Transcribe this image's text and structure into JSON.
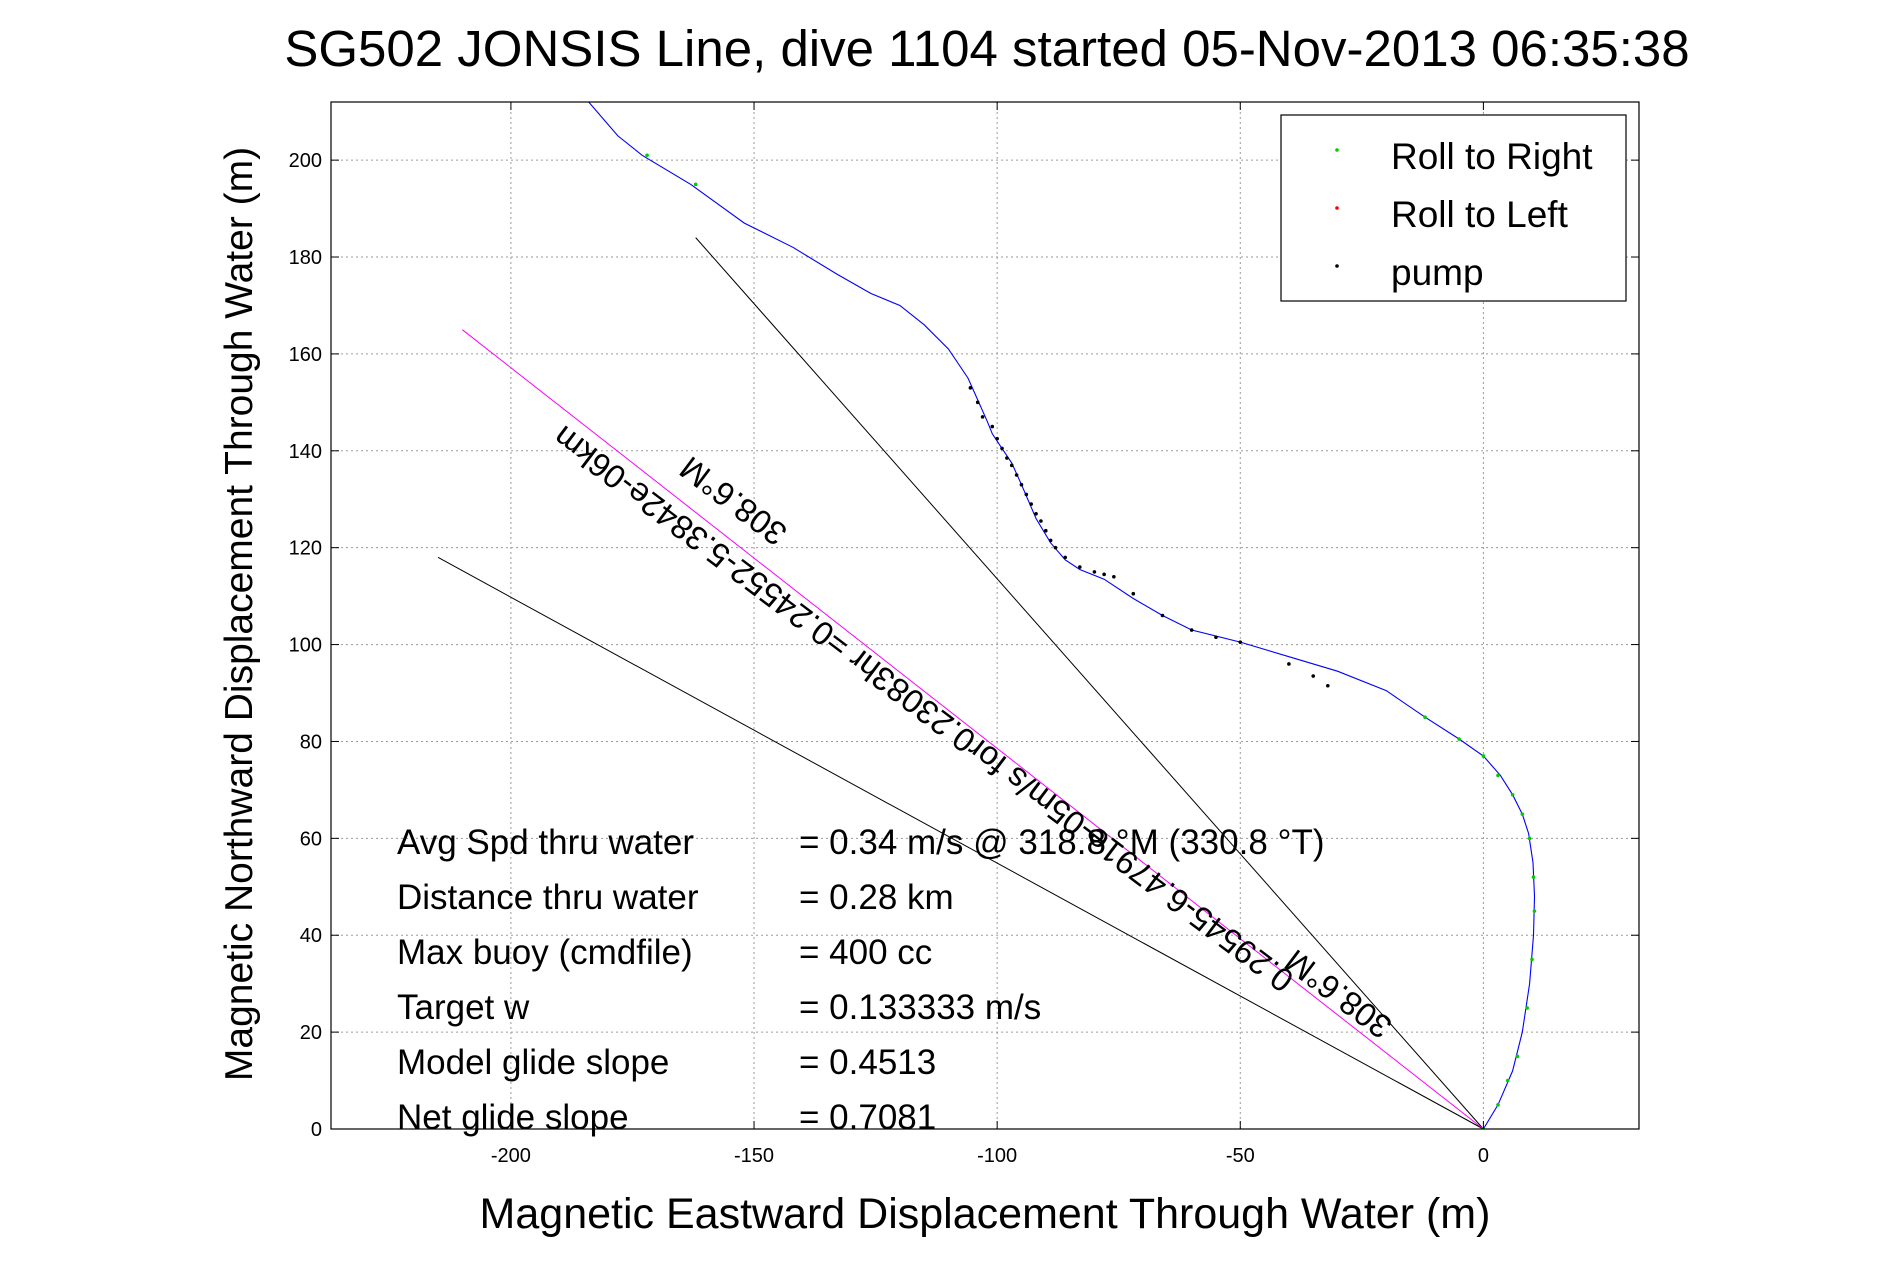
{
  "chart_data": {
    "type": "line",
    "title": "SG502 JONSIS Line, dive 1104 started 05-Nov-2013 06:35:38",
    "xlabel": "Magnetic Eastward Displacement Through Water (m)",
    "ylabel": "Magnetic Northward Displacement Through Water (m)",
    "xlim": [
      -237,
      32
    ],
    "ylim": [
      0,
      212
    ],
    "xticks": [
      -200,
      -150,
      -100,
      -50,
      0
    ],
    "yticks": [
      0,
      20,
      40,
      60,
      80,
      100,
      120,
      140,
      160,
      180,
      200
    ],
    "grid": true,
    "legend_position": "top-right",
    "legend": [
      {
        "label": "Roll to Right",
        "color": "#00cc00"
      },
      {
        "label": "Roll to Left",
        "color": "#ff0000"
      },
      {
        "label": "pump",
        "color": "#000000"
      }
    ],
    "track": {
      "color": "#0000ff",
      "x": [
        0,
        3,
        6,
        8,
        9.5,
        10.3,
        10.5,
        10.2,
        9.3,
        8,
        6,
        3.5,
        0,
        -5,
        -12,
        -20,
        -30,
        -40,
        -50,
        -60,
        -66,
        -72,
        -78,
        -83,
        -86,
        -89,
        -92,
        -95,
        -97,
        -99,
        -101,
        -102,
        -104,
        -106,
        -110,
        -115,
        -120,
        -126,
        -133,
        -142,
        -152,
        -163,
        -173,
        -178,
        -184
      ],
      "y": [
        0,
        5,
        12,
        20,
        30,
        40,
        48,
        55,
        61,
        65,
        69,
        73,
        77,
        80.5,
        85,
        90.5,
        94.5,
        97.5,
        100.5,
        103,
        106,
        109.5,
        113.5,
        115.5,
        117.5,
        121,
        126,
        133,
        137.5,
        140.5,
        143.5,
        146,
        150.5,
        155,
        161,
        166,
        170,
        172.5,
        176.5,
        182,
        187,
        195,
        201,
        205,
        212
      ]
    },
    "roll_right_points": {
      "x": [
        0,
        3,
        5,
        7,
        9,
        10,
        10.5,
        10.3,
        9.5,
        8,
        6,
        3,
        0,
        -5,
        -12,
        -162,
        -172
      ],
      "y": [
        0,
        5,
        10,
        15,
        25,
        35,
        45,
        52,
        60,
        65,
        69,
        73,
        77,
        80.5,
        85,
        195,
        201
      ]
    },
    "pump_points": {
      "x": [
        -32,
        -35,
        -40,
        -50,
        -55,
        -60,
        -66,
        -72,
        -76,
        -78,
        -80,
        -83,
        -86,
        -88,
        -89,
        -90,
        -91,
        -92,
        -93,
        -94,
        -95,
        -96,
        -97,
        -98,
        -99,
        -100,
        -101,
        -103,
        -104,
        -105.5
      ],
      "y": [
        91.5,
        93.5,
        96,
        100.5,
        101.5,
        103,
        106,
        110.5,
        114,
        114.5,
        115,
        116,
        118,
        120,
        121.5,
        123.5,
        125.5,
        127,
        129,
        131,
        133,
        135,
        137,
        138.5,
        140.5,
        142.5,
        145,
        147,
        150,
        153
      ]
    },
    "heading_lines": [
      {
        "x": [
          -162,
          0
        ],
        "y": [
          184,
          0
        ],
        "color": "#000000"
      },
      {
        "x": [
          -215,
          0
        ],
        "y": [
          118,
          0
        ],
        "color": "#000000"
      },
      {
        "x": [
          -210,
          0
        ],
        "y": [
          165,
          0
        ],
        "color": "#ff00ff"
      }
    ],
    "annotations": {
      "line_label_1": "0.29545-6.4791e-05m/s for0.23083hr =0.24552-5.3842e-06km",
      "heading_label_1": "308.6°M",
      "heading_label_2": "308.6°M"
    },
    "stats": [
      {
        "label": "Avg Spd thru water",
        "value": "=  0.34 m/s @ 318.8 °M (330.8 °T)"
      },
      {
        "label": "Distance thru water",
        "value": "=  0.28 km"
      },
      {
        "label": "Max buoy (cmdfile)",
        "value": "= 400 cc"
      },
      {
        "label": "Target w",
        "value": "= 0.133333 m/s"
      },
      {
        "label": "Model glide slope",
        "value": "= 0.4513"
      },
      {
        "label": "Net glide slope",
        "value": "= 0.7081"
      }
    ]
  }
}
